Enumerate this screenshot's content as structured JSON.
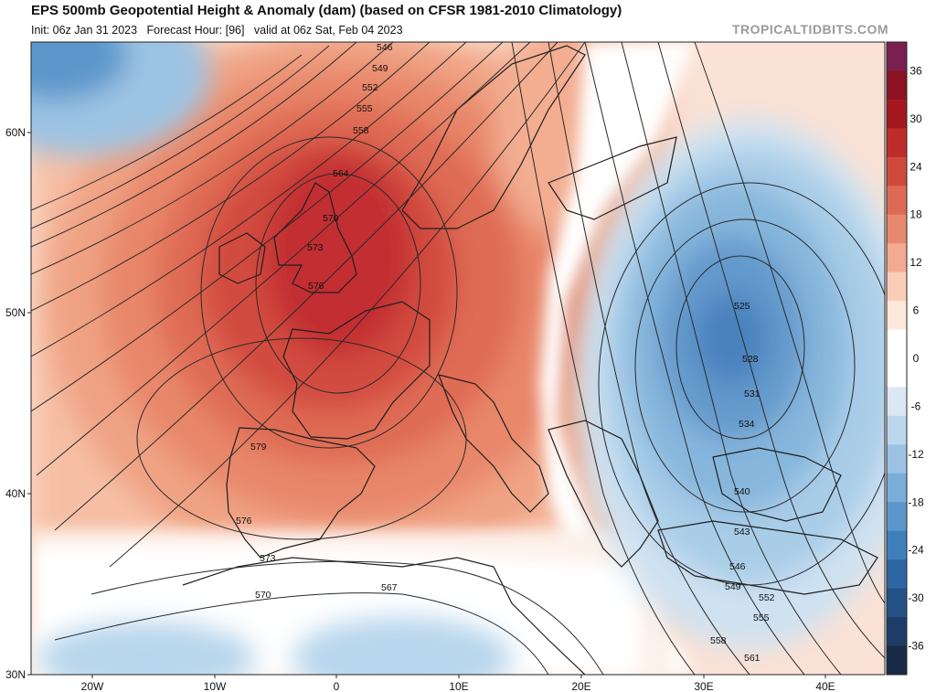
{
  "header": {
    "title": "EPS 500mb Geopotential Height & Anomaly (dam) (based on CFSR 1981-2010 Climatology)",
    "subtitle_init": "Init: 06z Jan 31 2023",
    "subtitle_hour": "Forecast Hour: [96]",
    "subtitle_valid": "valid at 06z Sat, Feb 04 2023",
    "brand": "TROPICALTIDBITS.COM"
  },
  "axes": {
    "lat_labels": [
      "60N",
      "50N",
      "40N",
      "30N"
    ],
    "lon_labels": [
      "20W",
      "10W",
      "0",
      "10E",
      "20E",
      "30E",
      "40E"
    ]
  },
  "colorbar": {
    "labels": [
      "36",
      "30",
      "24",
      "18",
      "12",
      "6",
      "0",
      "-6",
      "-12",
      "-18",
      "-24",
      "-30",
      "-36"
    ],
    "colors": [
      "#7a1f4f",
      "#8a1222",
      "#a3191f",
      "#be2c2a",
      "#cf4a3c",
      "#dd6a55",
      "#e8896f",
      "#f2ab90",
      "#f9cdb8",
      "#fde8dc",
      "#ffffff",
      "#ffffff",
      "#dbe8f4",
      "#bcd6ec",
      "#9cc3e3",
      "#7aaed8",
      "#5b97cb",
      "#3f7fbc",
      "#2e67a3",
      "#255186",
      "#1f3c66",
      "#1a2b47"
    ]
  },
  "contours": {
    "labels": [
      "546",
      "549",
      "552",
      "555",
      "558",
      "564",
      "570",
      "573",
      "576",
      "579",
      "576",
      "573",
      "570",
      "567",
      "525",
      "528",
      "531",
      "534",
      "540",
      "543",
      "546",
      "549",
      "552",
      "555",
      "558",
      "561"
    ]
  },
  "colors": {
    "land_border": "#222222",
    "contour": "#2a2a2a"
  }
}
